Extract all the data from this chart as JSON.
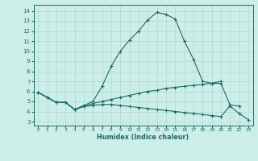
{
  "xlabel": "Humidex (Indice chaleur)",
  "bg_color": "#cceee8",
  "line_color": "#1a6b60",
  "grid_color": "#b0d8d0",
  "xlim": [
    -0.5,
    23.5
  ],
  "ylim": [
    2.6,
    14.6
  ],
  "xticks": [
    0,
    1,
    2,
    3,
    4,
    5,
    6,
    7,
    8,
    9,
    10,
    11,
    12,
    13,
    14,
    15,
    16,
    17,
    18,
    19,
    20,
    21,
    22,
    23
  ],
  "yticks": [
    3,
    4,
    5,
    6,
    7,
    8,
    9,
    10,
    11,
    12,
    13,
    14
  ],
  "line1_x": [
    0,
    1,
    2,
    3,
    4,
    5,
    6,
    7,
    8,
    9,
    10,
    11,
    12,
    13,
    14,
    15,
    16,
    17,
    18,
    19,
    20
  ],
  "line1_y": [
    5.9,
    5.4,
    4.9,
    4.9,
    4.2,
    4.6,
    5.0,
    6.5,
    8.5,
    10.0,
    11.1,
    12.0,
    13.1,
    13.85,
    13.65,
    13.2,
    11.0,
    9.2,
    7.0,
    6.8,
    7.0
  ],
  "line2_x": [
    0,
    1,
    2,
    3,
    4,
    5,
    6,
    7,
    8,
    9,
    10,
    11,
    12,
    13,
    14,
    15,
    16,
    17,
    18,
    19,
    20,
    21,
    22
  ],
  "line2_y": [
    5.9,
    5.4,
    4.9,
    4.9,
    4.2,
    4.5,
    4.8,
    5.0,
    5.2,
    5.4,
    5.6,
    5.8,
    6.0,
    6.1,
    6.3,
    6.4,
    6.5,
    6.6,
    6.7,
    6.8,
    6.8,
    4.65,
    4.55
  ],
  "line3_x": [
    0,
    1,
    2,
    3,
    4,
    5,
    6,
    7,
    8,
    9,
    10,
    11,
    12,
    13,
    14,
    15,
    16,
    17,
    18,
    19,
    20,
    21,
    22,
    23
  ],
  "line3_y": [
    5.9,
    5.4,
    4.9,
    4.9,
    4.2,
    4.5,
    4.6,
    4.7,
    4.7,
    4.6,
    4.5,
    4.4,
    4.3,
    4.2,
    4.1,
    4.0,
    3.9,
    3.8,
    3.7,
    3.6,
    3.5,
    4.55,
    3.8,
    3.2
  ]
}
